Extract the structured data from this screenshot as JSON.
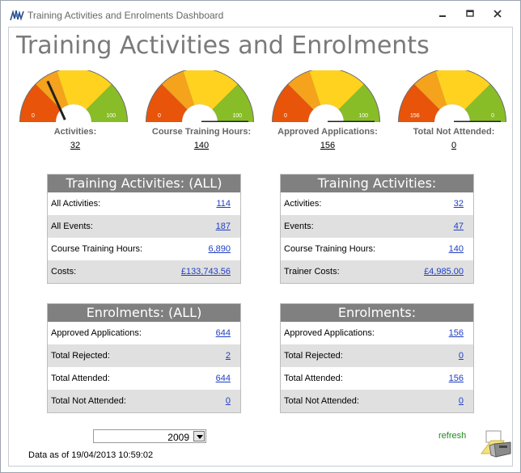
{
  "window": {
    "title": "Training Activities and Enrolments Dashboard"
  },
  "page": {
    "title": "Training Activities and Enrolments"
  },
  "gauges": [
    {
      "label": "Activities:",
      "value": "32",
      "min": "0",
      "max": "100",
      "reading": 32
    },
    {
      "label": "Course Training Hours:",
      "value": "140",
      "min": "0",
      "max": "100",
      "reading": 100
    },
    {
      "label": "Approved Applications:",
      "value": "156",
      "min": "0",
      "max": "100",
      "reading": 100
    },
    {
      "label": "Total Not Attended:",
      "value": "0",
      "min": "156",
      "max": "0",
      "reading": 100
    }
  ],
  "panels": {
    "activities_all": {
      "title": "Training Activities: (ALL)",
      "rows": [
        {
          "label": "All Activities:",
          "value": "114"
        },
        {
          "label": "All Events:",
          "value": "187"
        },
        {
          "label": "Course Training Hours:",
          "value": "6,890"
        },
        {
          "label": "Costs:",
          "value": "£133,743.56"
        }
      ]
    },
    "activities": {
      "title": "Training Activities:",
      "rows": [
        {
          "label": "Activities:",
          "value": "32"
        },
        {
          "label": "Events:",
          "value": "47"
        },
        {
          "label": "Course Training Hours:",
          "value": "140"
        },
        {
          "label": "Trainer Costs:",
          "value": "£4,985.00"
        }
      ]
    },
    "enrolments_all": {
      "title": "Enrolments: (ALL)",
      "rows": [
        {
          "label": "Approved Applications:",
          "value": "644"
        },
        {
          "label": "Total Rejected:",
          "value": "2"
        },
        {
          "label": "Total Attended:",
          "value": "644"
        },
        {
          "label": "Total Not Attended:",
          "value": "0"
        }
      ]
    },
    "enrolments": {
      "title": "Enrolments:",
      "rows": [
        {
          "label": "Approved Applications:",
          "value": "156"
        },
        {
          "label": "Total Rejected:",
          "value": "0"
        },
        {
          "label": "Total Attended:",
          "value": "156"
        },
        {
          "label": "Total Not Attended:",
          "value": "0"
        }
      ]
    }
  },
  "footer": {
    "year": "2009",
    "data_as_of": "Data as of 19/04/2013 10:59:02",
    "refresh_label": "refresh"
  },
  "colors": {
    "gauge_red": "#e8540a",
    "gauge_orange": "#f5a21c",
    "gauge_yellow": "#ffd21f",
    "gauge_green": "#88bd28",
    "panel_header": "#808080",
    "link": "#1f3ec4",
    "refresh": "#1e8a1e"
  },
  "icons": {
    "app": "app-logo-icon",
    "minimize": "minimize-icon",
    "maximize": "maximize-icon",
    "close": "close-icon",
    "dropdown": "chevron-down-icon",
    "print": "printer-icon"
  }
}
